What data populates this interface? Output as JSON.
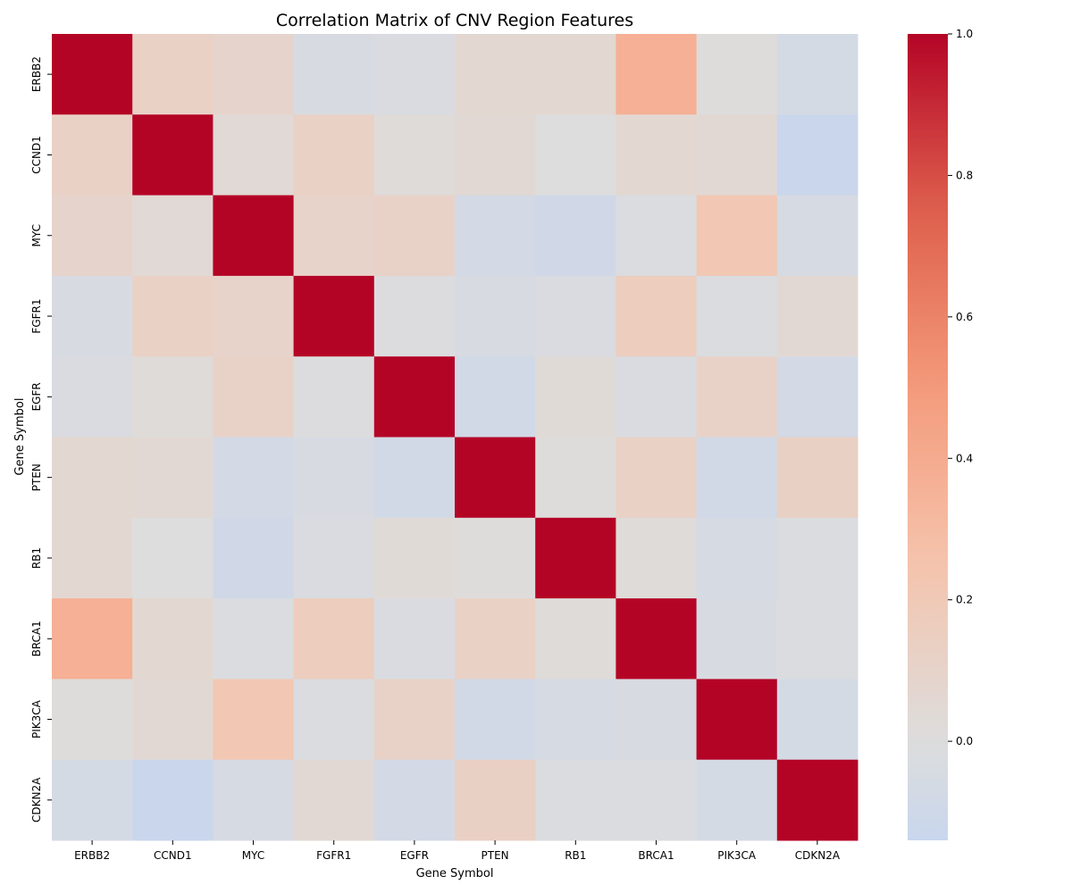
{
  "chart_data": {
    "type": "heatmap",
    "title": "Correlation Matrix of CNV Region Features",
    "xlabel": "Gene Symbol",
    "ylabel": "Gene Symbol",
    "x_categories": [
      "ERBB2",
      "CCND1",
      "MYC",
      "FGFR1",
      "EGFR",
      "PTEN",
      "RB1",
      "BRCA1",
      "PIK3CA",
      "CDKN2A"
    ],
    "y_categories": [
      "ERBB2",
      "CCND1",
      "MYC",
      "FGFR1",
      "EGFR",
      "PTEN",
      "RB1",
      "BRCA1",
      "PIK3CA",
      "CDKN2A"
    ],
    "values": [
      [
        1.0,
        0.12,
        0.09,
        -0.04,
        -0.03,
        0.06,
        0.06,
        0.37,
        0.01,
        -0.06
      ],
      [
        0.12,
        1.0,
        0.04,
        0.12,
        0.02,
        0.05,
        0.0,
        0.06,
        0.05,
        -0.13
      ],
      [
        0.09,
        0.04,
        1.0,
        0.1,
        0.11,
        -0.07,
        -0.09,
        -0.02,
        0.22,
        -0.05
      ],
      [
        -0.04,
        0.12,
        0.1,
        1.0,
        -0.01,
        -0.04,
        -0.03,
        0.16,
        -0.02,
        0.05
      ],
      [
        -0.03,
        0.02,
        0.11,
        -0.01,
        1.0,
        -0.08,
        0.03,
        -0.03,
        0.11,
        -0.07
      ],
      [
        0.06,
        0.05,
        -0.07,
        -0.04,
        -0.08,
        1.0,
        0.01,
        0.12,
        -0.08,
        0.13
      ],
      [
        0.06,
        0.0,
        -0.09,
        -0.03,
        0.03,
        0.01,
        1.0,
        0.02,
        -0.05,
        -0.02
      ],
      [
        0.37,
        0.06,
        -0.02,
        0.16,
        -0.03,
        0.12,
        0.02,
        1.0,
        -0.04,
        -0.02
      ],
      [
        0.01,
        0.05,
        0.22,
        -0.02,
        0.11,
        -0.08,
        -0.05,
        -0.04,
        1.0,
        -0.06
      ],
      [
        -0.06,
        -0.13,
        -0.05,
        0.05,
        -0.07,
        0.13,
        -0.02,
        -0.02,
        -0.06,
        1.0
      ]
    ],
    "colormap": "coolwarm",
    "vmin": -0.14,
    "vmax": 1.0,
    "center": 0.0,
    "colorbar": {
      "ticks": [
        "0.0",
        "0.2",
        "0.4",
        "0.6",
        "0.8",
        "1.0"
      ],
      "tick_values": [
        0.0,
        0.2,
        0.4,
        0.6,
        0.8,
        1.0
      ]
    },
    "grid": false,
    "legend": "colorbar-right"
  }
}
